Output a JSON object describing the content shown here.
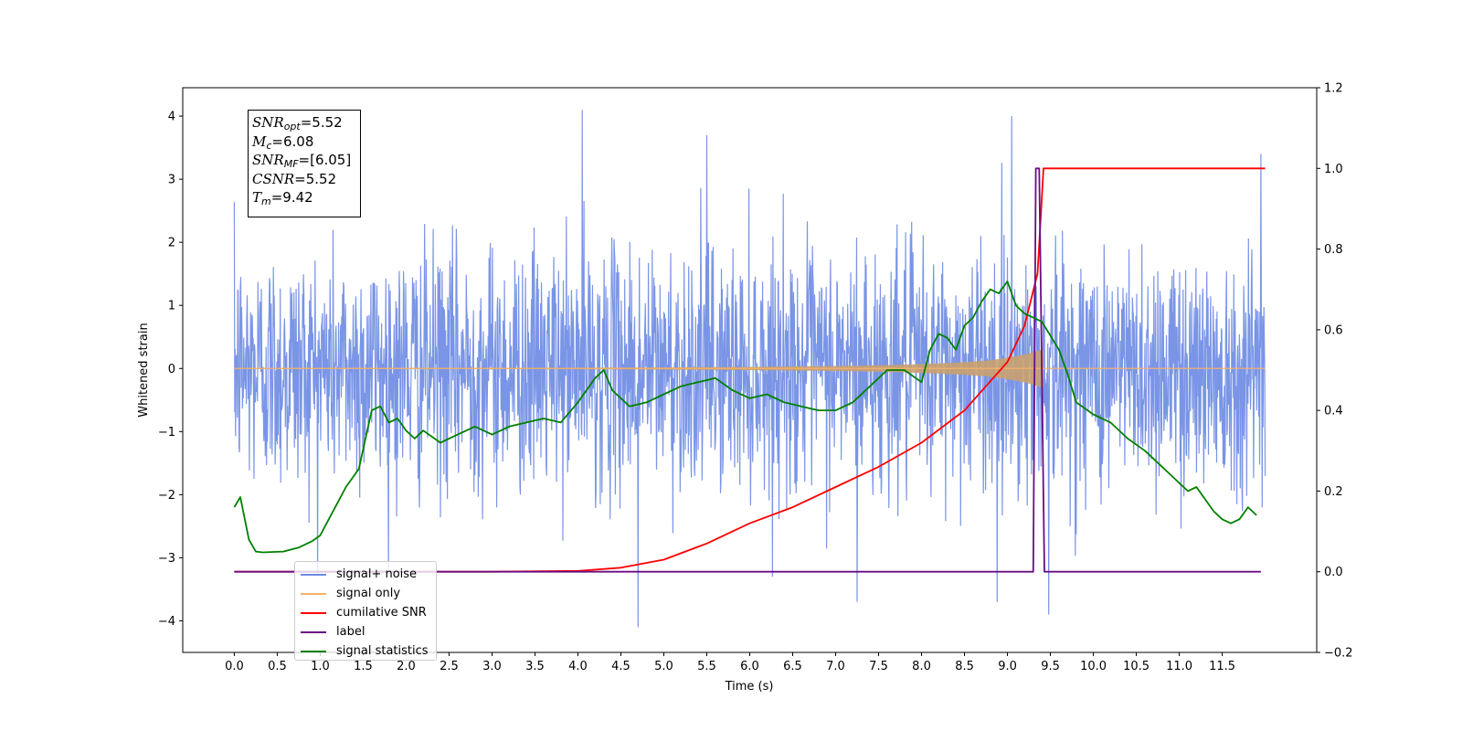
{
  "chart_data": {
    "type": "line",
    "xlabel": "Time (s)",
    "ylabel": "Whitened strain",
    "xlim": [
      -0.6,
      12.6
    ],
    "ylim": [
      -4.5,
      4.45
    ],
    "y2lim": [
      -0.2,
      1.2
    ],
    "x_ticks": [
      "0.0",
      "0.5",
      "1.0",
      "1.5",
      "2.0",
      "2.5",
      "3.0",
      "3.5",
      "4.0",
      "4.5",
      "5.0",
      "5.5",
      "6.0",
      "6.5",
      "7.0",
      "7.5",
      "8.0",
      "8.5",
      "9.0",
      "9.5",
      "10.0",
      "10.5",
      "11.0",
      "11.5"
    ],
    "y_ticks": [
      "4",
      "3",
      "2",
      "1",
      "0",
      "−1",
      "−2",
      "−3",
      "−4"
    ],
    "y2_ticks": [
      "1.2",
      "1.0",
      "0.8",
      "0.6",
      "0.4",
      "0.2",
      "0.0",
      "−0.2"
    ],
    "legend_placement": "lower left",
    "grid": false,
    "annotation": {
      "snr_opt": "=5.52",
      "mc": "=6.08",
      "snr_mf": "=[6.05]",
      "csnr": "=5.52",
      "tm": "=9.42"
    },
    "series": [
      {
        "name": "signal+ noise",
        "color": "#6b89e3",
        "axis": "left",
        "description_values": {
          "x_start": 0.0,
          "x_end": 12.0,
          "noise_std": 0.95,
          "notable_spikes": [
            [
              4.05,
              4.1
            ],
            [
              9.05,
              4.0
            ],
            [
              5.5,
              3.7
            ],
            [
              4.7,
              -4.1
            ],
            [
              9.48,
              -3.9
            ],
            [
              7.25,
              -3.7
            ],
            [
              8.88,
              -3.7
            ],
            [
              11.95,
              3.4
            ]
          ]
        }
      },
      {
        "name": "signal only",
        "color": "#f5b169",
        "axis": "left",
        "envelope": {
          "x": [
            0.0,
            2.0,
            4.0,
            5.0,
            6.0,
            7.0,
            7.5,
            8.0,
            8.5,
            8.8,
            9.0,
            9.2,
            9.35,
            9.42
          ],
          "amp": [
            0.005,
            0.008,
            0.012,
            0.017,
            0.025,
            0.04,
            0.05,
            0.07,
            0.1,
            0.13,
            0.17,
            0.22,
            0.28,
            0.3
          ]
        }
      },
      {
        "name": "cumilative SNR",
        "color": "#ff0000",
        "axis": "right",
        "x": [
          0.0,
          3.0,
          4.0,
          4.5,
          5.0,
          5.5,
          6.0,
          6.5,
          7.0,
          7.5,
          8.0,
          8.5,
          9.0,
          9.2,
          9.35,
          9.42,
          12.0
        ],
        "y": [
          0.0,
          0.0,
          0.002,
          0.01,
          0.03,
          0.07,
          0.12,
          0.16,
          0.21,
          0.26,
          0.32,
          0.4,
          0.52,
          0.61,
          0.74,
          1.0,
          1.0
        ]
      },
      {
        "name": "label",
        "color": "#6a0d83",
        "axis": "right",
        "x": [
          0.0,
          9.3,
          9.33,
          9.37,
          9.43,
          11.95
        ],
        "y": [
          0.0,
          0.0,
          1.0,
          1.0,
          0.0,
          0.0
        ]
      },
      {
        "name": "signal statistics",
        "color": "#008000",
        "axis": "right",
        "x": [
          0.0,
          0.07,
          0.17,
          0.25,
          0.33,
          0.57,
          0.75,
          0.9,
          1.0,
          1.1,
          1.2,
          1.3,
          1.45,
          1.6,
          1.7,
          1.8,
          1.9,
          2.0,
          2.1,
          2.2,
          2.4,
          2.6,
          2.8,
          3.0,
          3.2,
          3.4,
          3.6,
          3.8,
          4.0,
          4.2,
          4.3,
          4.4,
          4.6,
          4.8,
          5.0,
          5.2,
          5.4,
          5.6,
          5.8,
          6.0,
          6.2,
          6.4,
          6.6,
          6.8,
          7.0,
          7.2,
          7.4,
          7.6,
          7.8,
          8.0,
          8.1,
          8.2,
          8.3,
          8.4,
          8.5,
          8.6,
          8.7,
          8.8,
          8.9,
          9.0,
          9.1,
          9.2,
          9.3,
          9.4,
          9.6,
          9.7,
          9.8,
          10.0,
          10.2,
          10.4,
          10.6,
          10.8,
          11.0,
          11.1,
          11.2,
          11.4,
          11.5,
          11.6,
          11.7,
          11.8,
          11.9
        ],
        "y": [
          0.16,
          0.185,
          0.08,
          0.05,
          0.048,
          0.05,
          0.06,
          0.075,
          0.09,
          0.13,
          0.17,
          0.21,
          0.255,
          0.4,
          0.41,
          0.37,
          0.38,
          0.35,
          0.33,
          0.35,
          0.32,
          0.34,
          0.36,
          0.34,
          0.36,
          0.37,
          0.38,
          0.37,
          0.42,
          0.48,
          0.5,
          0.45,
          0.41,
          0.42,
          0.44,
          0.46,
          0.47,
          0.48,
          0.45,
          0.43,
          0.44,
          0.42,
          0.41,
          0.4,
          0.4,
          0.42,
          0.46,
          0.5,
          0.5,
          0.47,
          0.55,
          0.59,
          0.58,
          0.55,
          0.61,
          0.63,
          0.67,
          0.7,
          0.69,
          0.72,
          0.66,
          0.64,
          0.63,
          0.62,
          0.55,
          0.49,
          0.42,
          0.39,
          0.37,
          0.33,
          0.3,
          0.26,
          0.22,
          0.2,
          0.21,
          0.15,
          0.13,
          0.12,
          0.13,
          0.16,
          0.14
        ]
      }
    ]
  }
}
